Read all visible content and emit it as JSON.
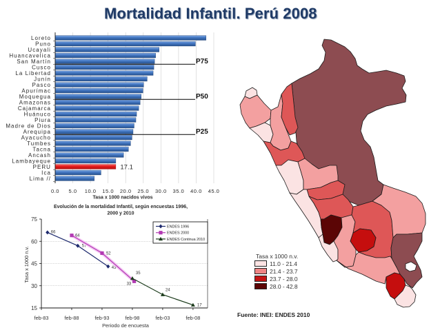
{
  "title": "Mortalidad Infantil. Perú 2008",
  "chart_data": [
    {
      "type": "bar",
      "orientation": "horizontal",
      "categories": [
        "Loreto",
        "Puno",
        "Ucayali",
        "Huancavelica",
        "San Martín",
        "Cusco",
        "La Libertad",
        "Junín",
        "Pasco",
        "Apurímac",
        "Moquegua",
        "Amazonas",
        "Cajamarca",
        "Huánuco",
        "Piura",
        "Madre de Dios",
        "Arequipa",
        "Ayacucho",
        "Tumbes",
        "Tacna",
        "Ancash",
        "Lambayeque",
        "PERU",
        "Ica",
        "Lima //"
      ],
      "values": [
        42.7,
        39.7,
        29.4,
        28.4,
        28.1,
        27.9,
        27.7,
        26.0,
        25.0,
        24.8,
        24.3,
        24.0,
        23.6,
        23.0,
        22.8,
        22.3,
        22.0,
        21.7,
        21.3,
        20.7,
        19.3,
        17.1,
        17.1,
        12.9,
        11.0
      ],
      "highlight": {
        "category": "PERU",
        "label": "17.1",
        "color": "#E31B1B"
      },
      "bar_color": "#3A6DB9",
      "xlabel": "Tasa x 1000 nacidos  vivos",
      "xlim": [
        0,
        45
      ],
      "xticks": [
        "0.0",
        "5.0",
        "10.0",
        "15.0",
        "20.0",
        "25.0",
        "30.0",
        "35.0",
        "40.0",
        "45.0"
      ],
      "grid": true,
      "reference_lines": [
        {
          "label": "P75",
          "after": "San Martín"
        },
        {
          "label": "P50",
          "after": "Moquegua"
        },
        {
          "label": "P25",
          "after": "Arequipa"
        }
      ]
    },
    {
      "type": "line",
      "title_lines": [
        "Evolución de la mortalidad Infantil, según encuestas 1996,",
        "2000 y 2010"
      ],
      "xlabel": "Periodo de encuesta",
      "ylabel": "Tasa x 1000 n.v.",
      "ylim": [
        15,
        75
      ],
      "yticks": [
        75,
        60,
        45,
        30,
        15
      ],
      "xlim": [
        1983,
        2010.4
      ],
      "xticks": [
        {
          "label": "feb-83",
          "x": 1983
        },
        {
          "label": "feb-88",
          "x": 1988
        },
        {
          "label": "feb-93",
          "x": 1993
        },
        {
          "label": "feb-98",
          "x": 1998
        },
        {
          "label": "feb-03",
          "x": 2003
        },
        {
          "label": "feb-08",
          "x": 2008
        }
      ],
      "grid": true,
      "legend_position": "top-right",
      "series": [
        {
          "name": "ENDES 1996",
          "color": "#1E2A6E",
          "marker": "diamond",
          "x": [
            1984,
            1989,
            1994
          ],
          "y": [
            66,
            57,
            43
          ],
          "labels": [
            "66",
            "57",
            "43"
          ]
        },
        {
          "name": "ENDES 2000",
          "color": "#B23AB2",
          "marker": "square",
          "x": [
            1988,
            1993,
            1998.3
          ],
          "y": [
            64,
            52,
            33
          ],
          "labels": [
            "64",
            "52",
            "33"
          ]
        },
        {
          "name": "ENDES Continua 2010",
          "color": "#1B3B1B",
          "marker": "triangle",
          "x": [
            1998,
            2003,
            2008
          ],
          "y": [
            35,
            24,
            17
          ],
          "labels": [
            "35",
            "24",
            "17"
          ]
        }
      ]
    }
  ],
  "map": {
    "legend_title": "Tasa x 1000 n.v.",
    "legend": [
      {
        "label": "11.0 - 21.4",
        "color": "#FCE4E4"
      },
      {
        "label": "21.4 - 23.7",
        "color": "#EF8585"
      },
      {
        "label": "23.7 - 28.0",
        "color": "#C41414"
      },
      {
        "label": "28.0 - 42.8",
        "color": "#5C0606"
      }
    ],
    "source": "Fuente: INEI: ENDES 2010"
  }
}
